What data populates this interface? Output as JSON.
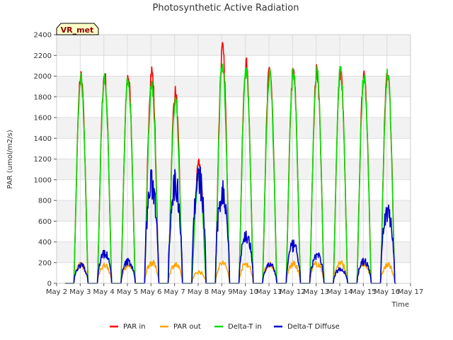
{
  "chart_data": {
    "type": "line",
    "title": "Photosynthetic Active Radiation",
    "xlabel": "Time",
    "ylabel": "PAR (umol/m2/s)",
    "ylim": [
      0,
      2400
    ],
    "xlim": [
      0,
      15
    ],
    "yticks": [
      0,
      200,
      400,
      600,
      800,
      1000,
      1200,
      1400,
      1600,
      1800,
      2000,
      2200,
      2400
    ],
    "xtick_labels": [
      "May 2",
      "May 3",
      "May 4",
      "May 5",
      "May 6",
      "May 7",
      "May 8",
      "May 9",
      "May 10",
      "May 11",
      "May 12",
      "May 13",
      "May 14",
      "May 15",
      "May 16",
      "May 17"
    ],
    "badge": "VR_met",
    "grid": true,
    "legend_position": "bottom",
    "day_sampling": {
      "sunrise_hour": 5.5,
      "sunset_hour": 20.0
    },
    "series": [
      {
        "name": "PAR in",
        "color": "#ff0000",
        "daily_peak": [
          2010,
          2010,
          2005,
          2050,
          1840,
          1160,
          2250,
          2110,
          2070,
          2040,
          2050,
          2050,
          2040,
          2080
        ]
      },
      {
        "name": "PAR out",
        "color": "#ffa500",
        "daily_peak": [
          180,
          175,
          175,
          200,
          180,
          110,
          195,
          190,
          185,
          185,
          190,
          195,
          185,
          175
        ]
      },
      {
        "name": "Delta-T in",
        "color": "#00e000",
        "daily_peak": [
          1980,
          1975,
          1970,
          1920,
          1760,
          1050,
          2120,
          2050,
          2020,
          2030,
          2040,
          2040,
          2000,
          2020
        ]
      },
      {
        "name": "Delta-T Diffuse",
        "color": "#0000cc",
        "daily_peak": [
          175,
          290,
          210,
          950,
          950,
          1000,
          870,
          460,
          180,
          360,
          270,
          140,
          210,
          700
        ]
      }
    ]
  }
}
